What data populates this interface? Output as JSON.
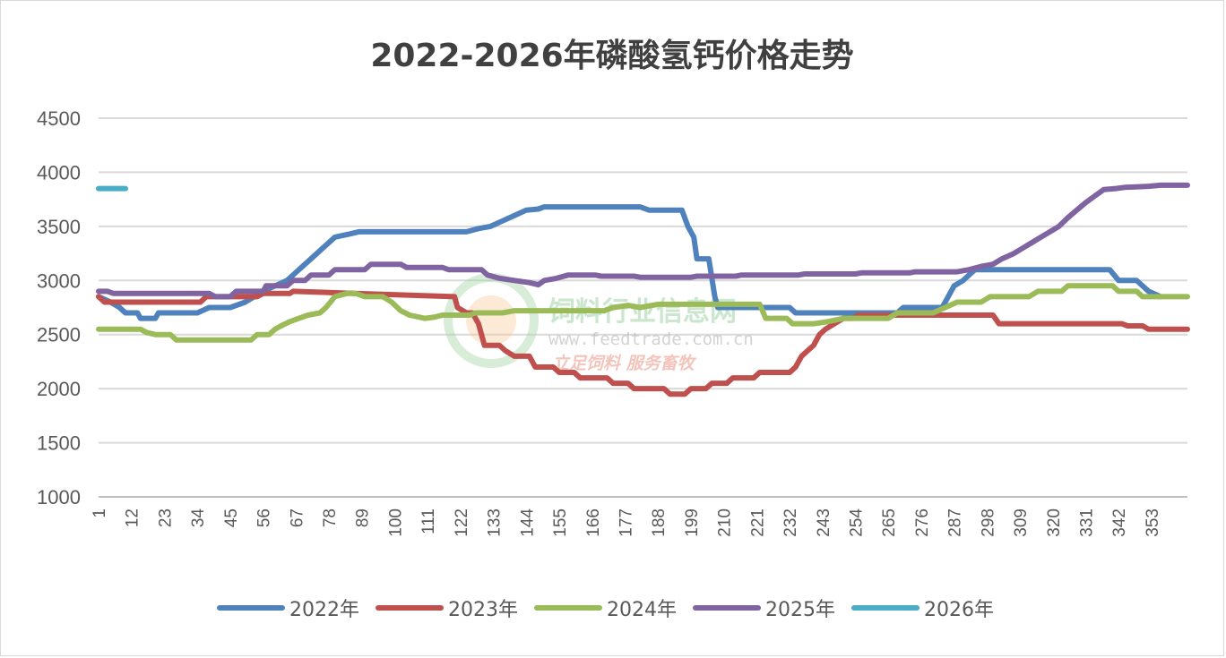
{
  "chart_data": {
    "type": "line",
    "title": "2022-2026年磷酸氢钙价格走势",
    "ylim": [
      1000,
      4500
    ],
    "yticks": [
      1000,
      1500,
      2000,
      2500,
      3000,
      3500,
      4000,
      4500
    ],
    "xlim": [
      1,
      365
    ],
    "xticks": [
      1,
      12,
      23,
      34,
      45,
      56,
      67,
      78,
      89,
      100,
      111,
      122,
      133,
      144,
      155,
      166,
      177,
      188,
      199,
      210,
      221,
      232,
      243,
      254,
      265,
      276,
      287,
      298,
      309,
      320,
      331,
      342,
      353
    ],
    "grid": true,
    "legend_position": "bottom",
    "series": [
      {
        "name": "2022年",
        "color": "#4f81bd",
        "points": [
          [
            1,
            2850
          ],
          [
            5,
            2800
          ],
          [
            8,
            2750
          ],
          [
            10,
            2700
          ],
          [
            14,
            2700
          ],
          [
            15,
            2650
          ],
          [
            20,
            2650
          ],
          [
            21,
            2700
          ],
          [
            34,
            2700
          ],
          [
            38,
            2750
          ],
          [
            45,
            2750
          ],
          [
            50,
            2800
          ],
          [
            53,
            2850
          ],
          [
            56,
            2900
          ],
          [
            60,
            2950
          ],
          [
            64,
            3000
          ],
          [
            68,
            3100
          ],
          [
            72,
            3200
          ],
          [
            76,
            3300
          ],
          [
            78,
            3350
          ],
          [
            80,
            3400
          ],
          [
            85,
            3430
          ],
          [
            88,
            3450
          ],
          [
            124,
            3450
          ],
          [
            128,
            3480
          ],
          [
            132,
            3500
          ],
          [
            136,
            3550
          ],
          [
            140,
            3600
          ],
          [
            144,
            3650
          ],
          [
            148,
            3660
          ],
          [
            150,
            3680
          ],
          [
            182,
            3680
          ],
          [
            185,
            3650
          ],
          [
            196,
            3650
          ],
          [
            198,
            3500
          ],
          [
            200,
            3400
          ],
          [
            201,
            3200
          ],
          [
            205,
            3200
          ],
          [
            207,
            2850
          ],
          [
            208,
            2750
          ],
          [
            232,
            2750
          ],
          [
            234,
            2700
          ],
          [
            268,
            2700
          ],
          [
            270,
            2750
          ],
          [
            283,
            2750
          ],
          [
            285,
            2850
          ],
          [
            287,
            2950
          ],
          [
            290,
            3000
          ],
          [
            292,
            3050
          ],
          [
            294,
            3100
          ],
          [
            339,
            3100
          ],
          [
            342,
            3000
          ],
          [
            348,
            3000
          ],
          [
            350,
            2950
          ],
          [
            352,
            2900
          ],
          [
            356,
            2850
          ]
        ]
      },
      {
        "name": "2023年",
        "color": "#c0504d",
        "points": [
          [
            1,
            2850
          ],
          [
            3,
            2800
          ],
          [
            35,
            2800
          ],
          [
            37,
            2850
          ],
          [
            54,
            2850
          ],
          [
            56,
            2880
          ],
          [
            65,
            2880
          ],
          [
            66,
            2900
          ],
          [
            120,
            2850
          ],
          [
            121,
            2750
          ],
          [
            124,
            2700
          ],
          [
            126,
            2700
          ],
          [
            128,
            2600
          ],
          [
            130,
            2400
          ],
          [
            135,
            2400
          ],
          [
            137,
            2350
          ],
          [
            140,
            2300
          ],
          [
            145,
            2300
          ],
          [
            147,
            2200
          ],
          [
            153,
            2200
          ],
          [
            155,
            2150
          ],
          [
            160,
            2150
          ],
          [
            162,
            2100
          ],
          [
            171,
            2100
          ],
          [
            173,
            2050
          ],
          [
            178,
            2050
          ],
          [
            180,
            2000
          ],
          [
            190,
            2000
          ],
          [
            192,
            1950
          ],
          [
            197,
            1950
          ],
          [
            199,
            2000
          ],
          [
            204,
            2000
          ],
          [
            206,
            2050
          ],
          [
            211,
            2050
          ],
          [
            213,
            2100
          ],
          [
            220,
            2100
          ],
          [
            222,
            2150
          ],
          [
            232,
            2150
          ],
          [
            234,
            2200
          ],
          [
            236,
            2300
          ],
          [
            238,
            2350
          ],
          [
            240,
            2400
          ],
          [
            242,
            2500
          ],
          [
            244,
            2550
          ],
          [
            247,
            2600
          ],
          [
            250,
            2650
          ],
          [
            253,
            2650
          ],
          [
            255,
            2680
          ],
          [
            300,
            2680
          ],
          [
            302,
            2600
          ],
          [
            343,
            2600
          ],
          [
            345,
            2580
          ],
          [
            350,
            2580
          ],
          [
            352,
            2550
          ],
          [
            365,
            2550
          ]
        ]
      },
      {
        "name": "2024年",
        "color": "#9bbb59",
        "points": [
          [
            1,
            2550
          ],
          [
            15,
            2550
          ],
          [
            17,
            2520
          ],
          [
            20,
            2500
          ],
          [
            25,
            2500
          ],
          [
            27,
            2450
          ],
          [
            52,
            2450
          ],
          [
            54,
            2500
          ],
          [
            58,
            2500
          ],
          [
            60,
            2550
          ],
          [
            62,
            2580
          ],
          [
            65,
            2620
          ],
          [
            68,
            2650
          ],
          [
            71,
            2680
          ],
          [
            75,
            2700
          ],
          [
            77,
            2750
          ],
          [
            80,
            2850
          ],
          [
            84,
            2880
          ],
          [
            87,
            2880
          ],
          [
            90,
            2850
          ],
          [
            96,
            2850
          ],
          [
            99,
            2800
          ],
          [
            102,
            2720
          ],
          [
            105,
            2680
          ],
          [
            110,
            2650
          ],
          [
            113,
            2660
          ],
          [
            116,
            2680
          ],
          [
            125,
            2680
          ],
          [
            127,
            2700
          ],
          [
            136,
            2700
          ],
          [
            140,
            2720
          ],
          [
            170,
            2720
          ],
          [
            173,
            2750
          ],
          [
            178,
            2770
          ],
          [
            182,
            2750
          ],
          [
            188,
            2780
          ],
          [
            222,
            2780
          ],
          [
            224,
            2650
          ],
          [
            231,
            2650
          ],
          [
            233,
            2600
          ],
          [
            240,
            2600
          ],
          [
            245,
            2620
          ],
          [
            250,
            2650
          ],
          [
            265,
            2650
          ],
          [
            268,
            2700
          ],
          [
            280,
            2700
          ],
          [
            284,
            2750
          ],
          [
            288,
            2800
          ],
          [
            296,
            2800
          ],
          [
            299,
            2850
          ],
          [
            312,
            2850
          ],
          [
            315,
            2900
          ],
          [
            323,
            2900
          ],
          [
            325,
            2950
          ],
          [
            340,
            2950
          ],
          [
            342,
            2900
          ],
          [
            348,
            2900
          ],
          [
            350,
            2850
          ],
          [
            365,
            2850
          ]
        ]
      },
      {
        "name": "2025年",
        "color": "#8064a2",
        "points": [
          [
            1,
            2900
          ],
          [
            4,
            2900
          ],
          [
            6,
            2880
          ],
          [
            38,
            2880
          ],
          [
            40,
            2850
          ],
          [
            45,
            2850
          ],
          [
            47,
            2900
          ],
          [
            56,
            2900
          ],
          [
            57,
            2950
          ],
          [
            64,
            2950
          ],
          [
            66,
            3000
          ],
          [
            70,
            3000
          ],
          [
            72,
            3050
          ],
          [
            78,
            3050
          ],
          [
            80,
            3100
          ],
          [
            90,
            3100
          ],
          [
            92,
            3150
          ],
          [
            102,
            3150
          ],
          [
            104,
            3120
          ],
          [
            116,
            3120
          ],
          [
            118,
            3100
          ],
          [
            129,
            3100
          ],
          [
            131,
            3050
          ],
          [
            135,
            3020
          ],
          [
            140,
            3000
          ],
          [
            145,
            2980
          ],
          [
            148,
            2960
          ],
          [
            150,
            3000
          ],
          [
            154,
            3020
          ],
          [
            158,
            3050
          ],
          [
            167,
            3050
          ],
          [
            169,
            3040
          ],
          [
            180,
            3040
          ],
          [
            182,
            3030
          ],
          [
            199,
            3030
          ],
          [
            201,
            3040
          ],
          [
            214,
            3040
          ],
          [
            216,
            3050
          ],
          [
            235,
            3050
          ],
          [
            237,
            3060
          ],
          [
            254,
            3060
          ],
          [
            256,
            3070
          ],
          [
            272,
            3070
          ],
          [
            274,
            3080
          ],
          [
            288,
            3080
          ],
          [
            292,
            3100
          ],
          [
            296,
            3130
          ],
          [
            300,
            3150
          ],
          [
            303,
            3200
          ],
          [
            307,
            3250
          ],
          [
            310,
            3300
          ],
          [
            313,
            3350
          ],
          [
            316,
            3400
          ],
          [
            319,
            3450
          ],
          [
            322,
            3500
          ],
          [
            325,
            3580
          ],
          [
            328,
            3650
          ],
          [
            331,
            3720
          ],
          [
            334,
            3780
          ],
          [
            337,
            3840
          ],
          [
            341,
            3850
          ],
          [
            344,
            3860
          ],
          [
            352,
            3870
          ],
          [
            356,
            3880
          ],
          [
            365,
            3880
          ]
        ]
      },
      {
        "name": "2026年",
        "color": "#4bacc6",
        "points": [
          [
            1,
            3850
          ],
          [
            10,
            3850
          ]
        ]
      }
    ]
  },
  "watermark": {
    "brand": "饲料行业信息网",
    "url": "www.feedtrade.com.cn",
    "slogan": "立足饲料   服务畜牧"
  }
}
